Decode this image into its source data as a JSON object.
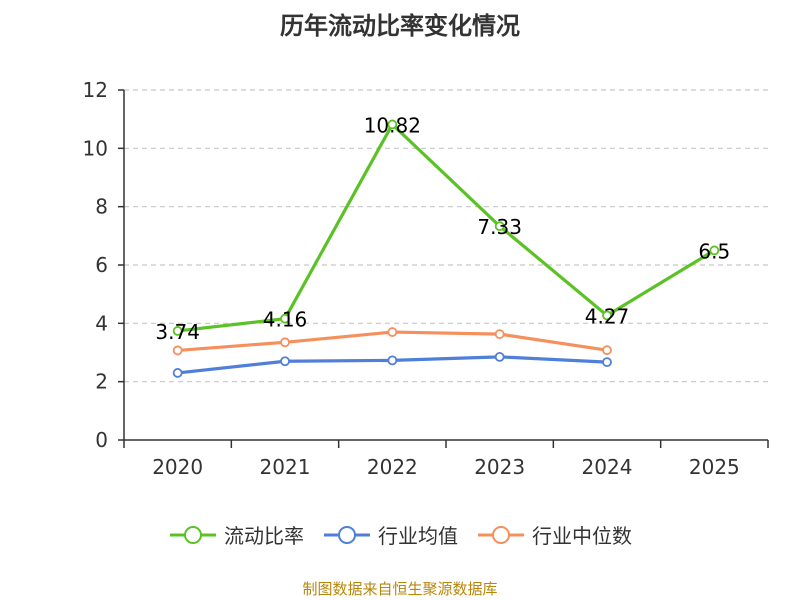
{
  "chart_data": {
    "type": "line",
    "title": "历年流动比率变化情况",
    "categories": [
      "2020",
      "2021",
      "2022",
      "2023",
      "2024",
      "2025"
    ],
    "ylim": [
      0,
      12
    ],
    "yticks": [
      0,
      2,
      4,
      6,
      8,
      10,
      12
    ],
    "grid": true,
    "legend_position": "bottom",
    "series": [
      {
        "name": "流动比率",
        "color": "#5bc225",
        "values": [
          3.74,
          4.16,
          10.82,
          7.33,
          4.27,
          6.5
        ],
        "labels": [
          "3.74",
          "4.16",
          "10.82",
          "7.33",
          "4.27",
          "6.5"
        ]
      },
      {
        "name": "行业均值",
        "color": "#4f7fd8",
        "values": [
          2.3,
          2.7,
          2.73,
          2.85,
          2.67,
          null
        ]
      },
      {
        "name": "行业中位数",
        "color": "#f5905d",
        "values": [
          3.07,
          3.35,
          3.7,
          3.63,
          3.08,
          null
        ]
      }
    ]
  },
  "source": "制图数据来自恒生聚源数据库"
}
